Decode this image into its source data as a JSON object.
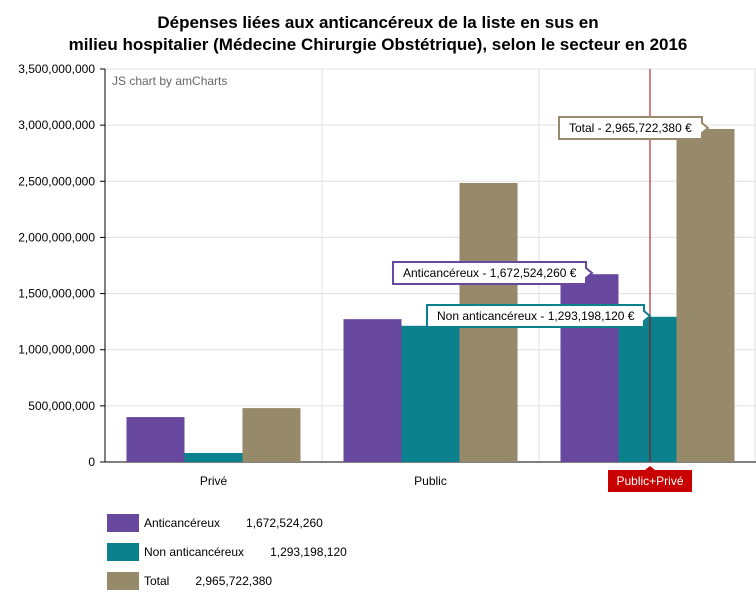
{
  "chart_data": {
    "type": "bar",
    "title_lines": [
      "Dépenses liées aux anticancéreux de la liste en sus en",
      "milieu hospitalier (Médecine Chirurgie Obstétrique), selon le secteur en 2016"
    ],
    "credit": "JS chart by amCharts",
    "categories": [
      "Privé",
      "Public",
      "Public+Privé"
    ],
    "highlighted_category": "Public+Privé",
    "y_ticks": [
      "0",
      "500,000,000",
      "1,000,000,000",
      "1,500,000,000",
      "2,000,000,000",
      "2,500,000,000",
      "3,000,000,000",
      "3,500,000,000"
    ],
    "ylim": [
      0,
      3500000000
    ],
    "grid": true,
    "legend_position": "bottom-left",
    "series": [
      {
        "name": "Anticancéreux",
        "color": "#67489e",
        "values": [
          400000000,
          1272000000,
          1672524260
        ],
        "legend_value": "1,672,524,260",
        "tooltip": "Anticancéreux - 1,672,524,260 €"
      },
      {
        "name": "Non anticancéreux",
        "color": "#0c818e",
        "values": [
          80000000,
          1213000000,
          1293198120
        ],
        "legend_value": "1,293,198,120",
        "tooltip": "Non anticancéreux - 1,293,198,120 €"
      },
      {
        "name": "Total",
        "color": "#978a6a",
        "values": [
          480000000,
          2485000000,
          2965722380
        ],
        "legend_value": "2,965,722,380",
        "tooltip": "Total - 2,965,722,380 €"
      }
    ]
  }
}
